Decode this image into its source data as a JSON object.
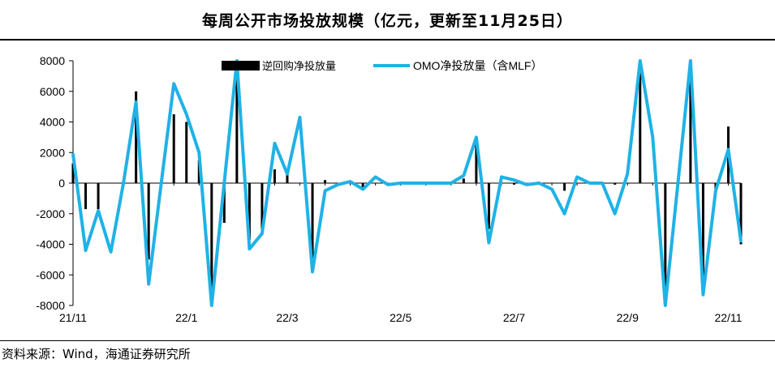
{
  "title": "每周公开市场投放规模（亿元，更新至11月25日）",
  "source": "资料来源：Wind，海通证券研究所",
  "colors": {
    "bar": "#000000",
    "line": "#20b2e6",
    "axis": "#000000"
  },
  "chart_data": {
    "type": "bar+line",
    "ylim": [
      -8000,
      8000
    ],
    "yticks": [
      8000,
      6000,
      4000,
      2000,
      0,
      -2000,
      -4000,
      -6000,
      -8000
    ],
    "xtick_labels": [
      {
        "label": "21/11",
        "index": 0
      },
      {
        "label": "22/1",
        "index": 9
      },
      {
        "label": "22/3",
        "index": 17
      },
      {
        "label": "22/5",
        "index": 26
      },
      {
        "label": "22/7",
        "index": 35
      },
      {
        "label": "22/9",
        "index": 44
      },
      {
        "label": "22/11",
        "index": 52
      }
    ],
    "grid": false,
    "legend": "top-center",
    "series": [
      {
        "name": "逆回购净投放量",
        "type": "bar",
        "values": [
          1300,
          -1700,
          -1700,
          0,
          0,
          6000,
          -5000,
          0,
          4500,
          4000,
          1500,
          -7900,
          -2600,
          7000,
          -3700,
          -3000,
          900,
          800,
          0,
          -5000,
          200,
          0,
          0,
          -300,
          0,
          0,
          0,
          0,
          0,
          0,
          0,
          300,
          2800,
          -3000,
          0,
          -100,
          0,
          -100,
          0,
          -500,
          0,
          0,
          0,
          -100,
          0,
          7700,
          0,
          -8000,
          0,
          7800,
          -7300,
          -500,
          3700,
          -4000
        ]
      },
      {
        "name": "OMO净投放量（含MLF）",
        "type": "line",
        "values": [
          1900,
          -4400,
          -1800,
          -4500,
          0,
          5300,
          -6600,
          0,
          6500,
          4500,
          2000,
          -8000,
          0,
          8000,
          -4300,
          -3300,
          2600,
          600,
          4300,
          -5800,
          -500,
          -100,
          100,
          -400,
          400,
          -100,
          0,
          0,
          0,
          0,
          0,
          500,
          3000,
          -3900,
          400,
          200,
          -100,
          0,
          -400,
          -2000,
          400,
          0,
          0,
          -2000,
          600,
          8000,
          3000,
          -8000,
          0,
          8000,
          -7300,
          -500,
          2200,
          -3800
        ]
      }
    ]
  }
}
